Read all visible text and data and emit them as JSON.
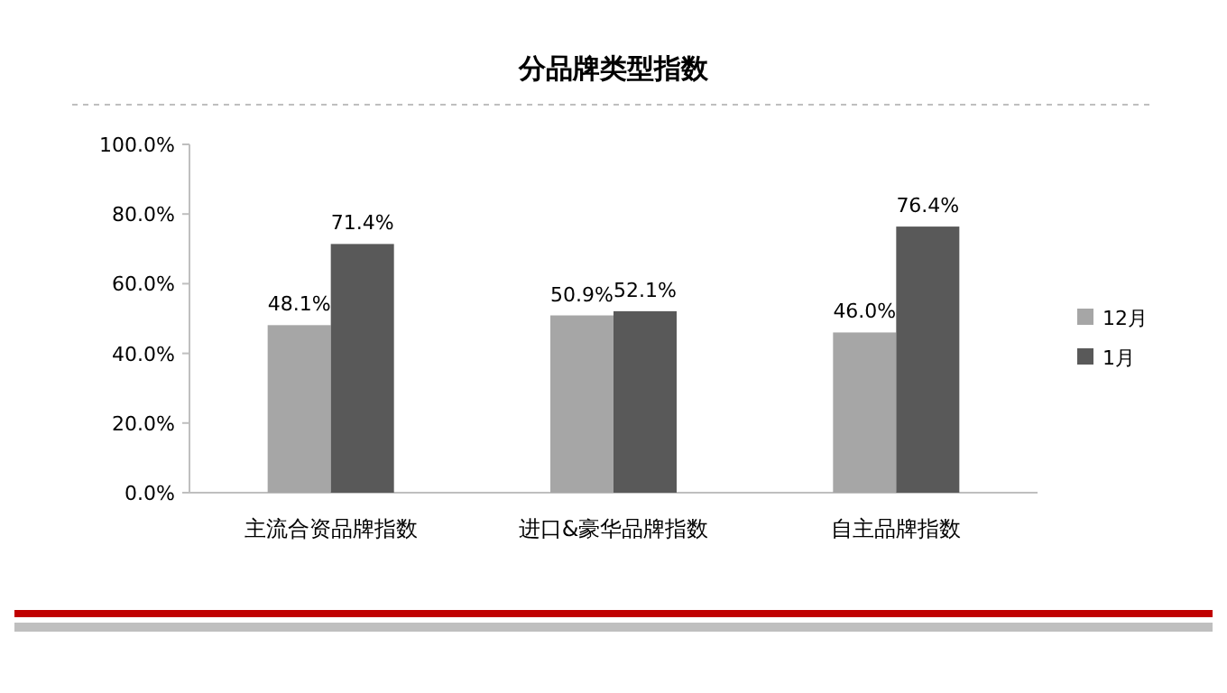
{
  "chart_data": {
    "type": "bar",
    "title": "分品牌类型指数",
    "categories": [
      "主流合资品牌指数",
      "进口&豪华品牌指数",
      "自主品牌指数"
    ],
    "series": [
      {
        "name": "12月",
        "color": "#a6a6a6",
        "values": [
          48.1,
          50.9,
          46.0
        ],
        "value_labels": [
          "48.1%",
          "50.9%",
          "46.0%"
        ]
      },
      {
        "name": "1月",
        "color": "#595959",
        "values": [
          71.4,
          52.1,
          76.4
        ],
        "value_labels": [
          "71.4%",
          "52.1%",
          "76.4%"
        ]
      }
    ],
    "ylim": [
      0,
      100
    ],
    "yticks": [
      {
        "value": 0,
        "label": "0.0%"
      },
      {
        "value": 20,
        "label": "20.0%"
      },
      {
        "value": 40,
        "label": "40.0%"
      },
      {
        "value": 60,
        "label": "60.0%"
      },
      {
        "value": 80,
        "label": "80.0%"
      },
      {
        "value": 100,
        "label": "100.0%"
      }
    ],
    "grid": false,
    "legend": "right"
  }
}
